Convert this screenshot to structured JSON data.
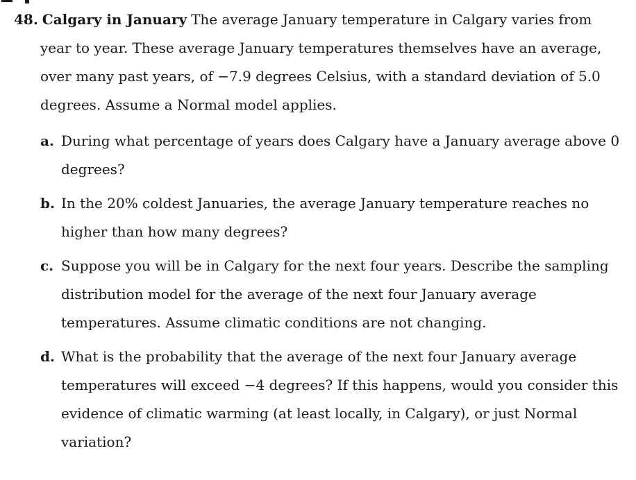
{
  "problem": {
    "number": "48.",
    "title": "Calgary in January",
    "intro": "The average January temperature in Calgary varies from year to year. These average January temperatures themselves have an average, over many past years, of −7.9 degrees Celsius, with a standard deviation of 5.0 degrees. Assume a Normal model applies.",
    "parts": [
      {
        "letter": "a.",
        "text": "During what percentage of years does Calgary have a January average above 0 degrees?"
      },
      {
        "letter": "b.",
        "text": "In the 20% coldest Januaries, the average January temperature reaches no higher than how many degrees?"
      },
      {
        "letter": "c.",
        "text": "Suppose you will be in Calgary for the next four years. Describe the sampling distribution model for the average of the next four January average temperatures. Assume climatic conditions are not changing."
      },
      {
        "letter": "d.",
        "text": "What is the probability that the average of the next four January average temperatures will exceed −4 degrees? If this happens, would you consider this evidence of climatic warming (at least locally, in Calgary), or just Normal variation?"
      }
    ]
  }
}
